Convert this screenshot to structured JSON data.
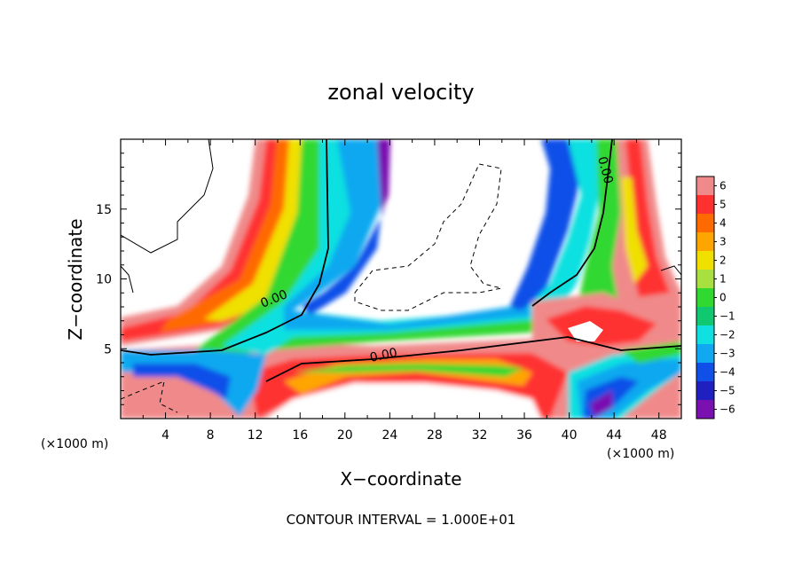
{
  "chart_data": {
    "type": "heatmap",
    "title": "zonal velocity",
    "xlabel": "X−coordinate",
    "ylabel": "Z−coordinate",
    "x_unit": "(×1000 m)",
    "z_unit": "(×1000 m)",
    "footer": "CONTOUR INTERVAL = 1.000E+01",
    "xlim": [
      0,
      50
    ],
    "ylim": [
      0,
      20
    ],
    "x_ticks": [
      4,
      8,
      12,
      16,
      20,
      24,
      28,
      32,
      36,
      40,
      44,
      48
    ],
    "y_ticks": [
      5,
      10,
      15
    ],
    "colorbar": {
      "levels": [
        6,
        5,
        4,
        3,
        2,
        1,
        0,
        -1,
        -2,
        -3,
        -4,
        -5,
        -6
      ],
      "labels": [
        "6",
        "5",
        "4",
        "3",
        "2",
        "1",
        "0",
        "−1",
        "−2",
        "−3",
        "−4",
        "−5",
        "−6"
      ],
      "colors": [
        "#f08a8a",
        "#ff3030",
        "#ff6a00",
        "#ffa500",
        "#f0e000",
        "#a8e040",
        "#30d830",
        "#10c870",
        "#10e0e0",
        "#10a8f0",
        "#1050e8",
        "#2020c0",
        "#7a10b0"
      ]
    },
    "contour_labels": [
      {
        "text": "0.00",
        "x": 11.5,
        "z": 8.4
      },
      {
        "text": "0.00",
        "x": 23.8,
        "z": 4.8
      },
      {
        "text": "0.00",
        "x": 43.2,
        "z": 17.5
      }
    ],
    "features": [
      {
        "name": "western positive jet",
        "range_x": [
          6,
          19
        ],
        "max_value": 6
      },
      {
        "name": "central negative band",
        "range_x": [
          17,
          24
        ],
        "min_value": -6
      },
      {
        "name": "eastern negative band",
        "range_x": [
          35,
          42
        ],
        "min_value": -6
      },
      {
        "name": "eastern positive jet",
        "range_x": [
          42,
          49
        ],
        "max_value": 6
      },
      {
        "name": "lower positive layer",
        "range_z": [
          0,
          5
        ],
        "max_value": 6
      }
    ]
  }
}
